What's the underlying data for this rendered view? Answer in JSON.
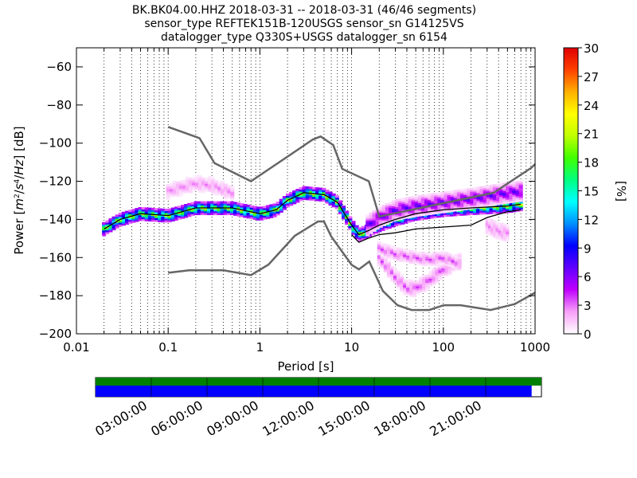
{
  "title_lines": [
    "BK.BK04.00.HHZ   2018-03-31 -- 2018-03-31  (46/46 segments)",
    "sensor_type REFTEK151B-120USGS sensor_sn G14125VS",
    "datalogger_type Q330S+USGS datalogger_sn 6154"
  ],
  "chart_data": {
    "type": "heatmap",
    "title": "BK.BK04.00.HHZ   2018-03-31 -- 2018-03-31  (46/46 segments)",
    "xlabel": "Period [s]",
    "ylabel": "Power [m²/s⁴/Hz] [dB]",
    "xscale": "log",
    "xlim": [
      0.01,
      1000
    ],
    "ylim": [
      -200,
      -50
    ],
    "x_ticks": [
      0.01,
      0.1,
      1,
      10,
      100,
      1000
    ],
    "x_tick_labels": [
      "0.01",
      "0.1",
      "1",
      "10",
      "100",
      "1000"
    ],
    "y_ticks": [
      -200,
      -180,
      -160,
      -140,
      -120,
      -100,
      -80,
      -60
    ],
    "y_tick_labels": [
      "−200",
      "−180",
      "−160",
      "−140",
      "−120",
      "−100",
      "−80",
      "−60"
    ],
    "grid": "vertical dotted at log minor ticks",
    "colorbar": {
      "label": "[%]",
      "range": [
        0,
        30
      ],
      "ticks": [
        0,
        3,
        6,
        9,
        12,
        15,
        18,
        21,
        24,
        27,
        30
      ],
      "tick_labels": [
        "0",
        "3",
        "6",
        "9",
        "12",
        "15",
        "18",
        "21",
        "24",
        "27",
        "30"
      ],
      "colors": [
        "#ffffff",
        "#f8a0f8",
        "#c000ff",
        "#6000ff",
        "#0000ff",
        "#0090ff",
        "#00ffff",
        "#00ff80",
        "#40ff00",
        "#c0ff00",
        "#ffff00",
        "#ffb000",
        "#ff4000",
        "#e00000"
      ]
    },
    "series": [
      {
        "role": "new high noise model",
        "x": [
          0.1,
          0.22,
          0.32,
          0.8,
          3.8,
          4.6,
          6.3,
          7.9,
          15.4,
          20,
          354.8,
          912,
          1000
        ],
        "y": [
          -91.5,
          -97.4,
          -110.5,
          -120,
          -98,
          -96.5,
          -101,
          -113.5,
          -120,
          -138.5,
          -126,
          -112.9,
          -111
        ]
      },
      {
        "role": "new low noise model",
        "x": [
          0.1,
          0.17,
          0.4,
          0.8,
          1.24,
          2.4,
          4.3,
          5,
          6,
          10,
          12,
          15.6,
          21.9,
          31.6,
          45,
          70,
          101,
          154,
          328,
          600,
          10000
        ],
        "y": [
          -168,
          -166.7,
          -166.7,
          -169.2,
          -163.7,
          -148.6,
          -141.1,
          -141.1,
          -149,
          -163.8,
          -166.2,
          -162.1,
          -177.5,
          -185,
          -187.5,
          -187.5,
          -185,
          -185,
          -187.5,
          -184.4,
          -151.5
        ]
      },
      {
        "role": "statistic line (black)",
        "x": [
          0.02,
          0.03,
          0.05,
          0.1,
          0.2,
          0.5,
          1,
          1.5,
          2,
          3,
          5,
          7,
          10,
          12,
          15,
          20,
          30,
          50,
          100,
          200,
          500,
          700
        ],
        "y": [
          -145,
          -140,
          -137,
          -138,
          -134,
          -134,
          -137,
          -135,
          -130,
          -126,
          -127,
          -131,
          -143,
          -148,
          -146,
          -143,
          -140,
          -137,
          -135,
          -134,
          -133,
          -132
        ]
      },
      {
        "role": "percentile line (black, lower)",
        "x": [
          10,
          12,
          15,
          20,
          30,
          50,
          100,
          200,
          300,
          500,
          700
        ],
        "y": [
          -148,
          -152,
          -150,
          -148,
          -147,
          -145,
          -144,
          -143,
          -139,
          -136,
          -135
        ]
      }
    ],
    "density_bands": [
      {
        "x": [
          0.02,
          0.03,
          0.05,
          0.1,
          0.2,
          0.5,
          1,
          1.5,
          2,
          3,
          5,
          7,
          10,
          12,
          15,
          20,
          30,
          50,
          100,
          200,
          500,
          700
        ],
        "y": [
          -145,
          -140,
          -137,
          -138,
          -134,
          -134,
          -137,
          -135,
          -130,
          -126,
          -127,
          -131,
          -143,
          -148,
          -146,
          -143,
          -140,
          -137,
          -135,
          -134,
          -133,
          -132
        ],
        "spread_db": 3,
        "level_pct": 24
      },
      {
        "x": [
          0.1,
          0.2,
          0.3,
          0.5
        ],
        "y": [
          -125,
          -121,
          -122,
          -126
        ],
        "spread_db": 4,
        "level_pct": 3
      },
      {
        "x": [
          15,
          20,
          30,
          50,
          100,
          200,
          500,
          700
        ],
        "y": [
          -143,
          -139,
          -135,
          -133,
          -131,
          -129,
          -126,
          -125
        ],
        "spread_db": 5,
        "level_pct": 8
      },
      {
        "x": [
          20,
          30,
          40,
          50,
          70,
          100,
          150
        ],
        "y": [
          -160,
          -170,
          -176,
          -176,
          -172,
          -166,
          -162
        ],
        "spread_db": 4,
        "level_pct": 4
      },
      {
        "x": [
          20,
          30,
          50,
          70,
          100,
          150
        ],
        "y": [
          -155,
          -158,
          -160,
          -161,
          -160,
          -163
        ],
        "spread_db": 3,
        "level_pct": 4
      },
      {
        "x": [
          300,
          400,
          500
        ],
        "y": [
          -143,
          -146,
          -147
        ],
        "spread_db": 5,
        "level_pct": 3
      }
    ]
  },
  "timeline": {
    "labels": [
      "03:00:00",
      "06:00:00",
      "09:00:00",
      "12:00:00",
      "15:00:00",
      "18:00:00",
      "21:00:00"
    ],
    "top_bar_color": "#008000",
    "data_bar_color": "#0000ff",
    "data_coverage_fraction": 0.978
  }
}
